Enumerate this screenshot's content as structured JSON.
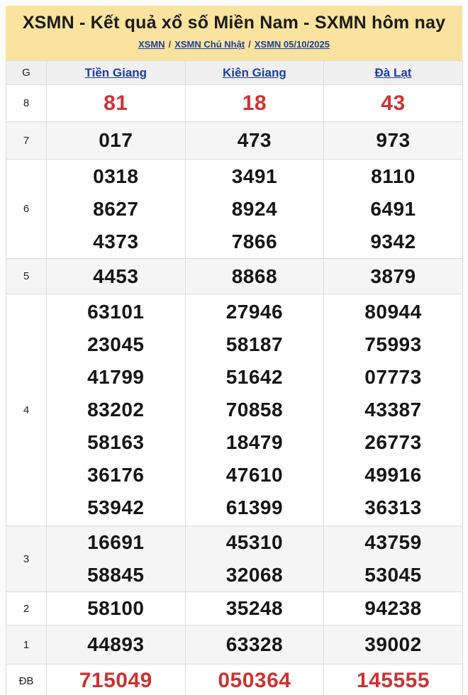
{
  "header": {
    "title": "XSMN - Kết quả xổ số Miền Nam - SXMN hôm nay",
    "breadcrumb": {
      "items": [
        "XSMN",
        "XSMN Chủ Nhật",
        "XSMN 05/10/2025"
      ],
      "separator": "/"
    }
  },
  "colors": {
    "header_bg": "#f9e39e",
    "link_blue": "#1c3f9e",
    "highlight_red": "#cc3333",
    "stripe_gray": "#f5f5f5",
    "border_gray": "#dcdcdc"
  },
  "table": {
    "prize_col_header": "G",
    "columns": [
      "Tiền Giang",
      "Kiên Giang",
      "Đà Lạt"
    ],
    "rows": [
      {
        "prize": "8",
        "highlight": true,
        "cells": [
          [
            "81"
          ],
          [
            "18"
          ],
          [
            "43"
          ]
        ]
      },
      {
        "prize": "7",
        "highlight": false,
        "cells": [
          [
            "017"
          ],
          [
            "473"
          ],
          [
            "973"
          ]
        ]
      },
      {
        "prize": "6",
        "highlight": false,
        "cells": [
          [
            "0318",
            "8627",
            "4373"
          ],
          [
            "3491",
            "8924",
            "7866"
          ],
          [
            "8110",
            "6491",
            "9342"
          ]
        ]
      },
      {
        "prize": "5",
        "highlight": false,
        "cells": [
          [
            "4453"
          ],
          [
            "8868"
          ],
          [
            "3879"
          ]
        ]
      },
      {
        "prize": "4",
        "highlight": false,
        "cells": [
          [
            "63101",
            "23045",
            "41799",
            "83202",
            "58163",
            "36176",
            "53942"
          ],
          [
            "27946",
            "58187",
            "51642",
            "70858",
            "18479",
            "47610",
            "61399"
          ],
          [
            "80944",
            "75993",
            "07773",
            "43387",
            "26773",
            "49916",
            "36313"
          ]
        ]
      },
      {
        "prize": "3",
        "highlight": false,
        "cells": [
          [
            "16691",
            "58845"
          ],
          [
            "45310",
            "32068"
          ],
          [
            "43759",
            "53045"
          ]
        ]
      },
      {
        "prize": "2",
        "highlight": false,
        "cells": [
          [
            "58100"
          ],
          [
            "35248"
          ],
          [
            "94238"
          ]
        ]
      },
      {
        "prize": "1",
        "highlight": false,
        "cells": [
          [
            "44893"
          ],
          [
            "63328"
          ],
          [
            "39002"
          ]
        ]
      },
      {
        "prize": "ĐB",
        "highlight": true,
        "cells": [
          [
            "715049"
          ],
          [
            "050364"
          ],
          [
            "145555"
          ]
        ]
      }
    ]
  }
}
